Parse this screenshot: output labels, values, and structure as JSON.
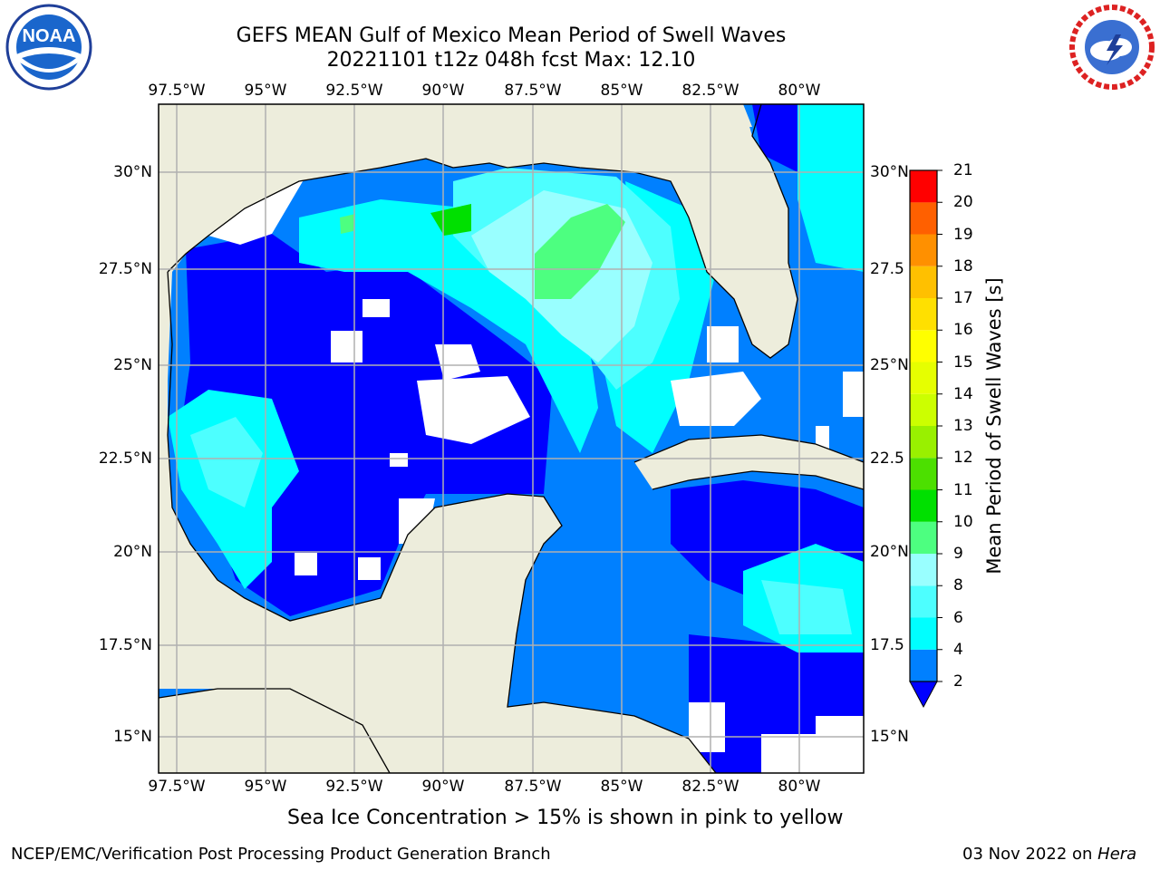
{
  "header": {
    "title_line1": "GEFS MEAN Gulf of Mexico Mean Period of Swell Waves",
    "title_line2": "20221101 t12z 048h fcst   Max: 12.10"
  },
  "logos": {
    "left": "noaa-logo",
    "right": "national-weather-service-logo",
    "left_text": "NOAA",
    "right_text": "NATIONAL WEATHER SERVICE"
  },
  "map": {
    "lon_labels": [
      "97.5°W",
      "95°W",
      "92.5°W",
      "90°W",
      "87.5°W",
      "85°W",
      "82.5°W",
      "80°W"
    ],
    "lat_labels_left": [
      "30°N",
      "27.5°N",
      "25°N",
      "22.5°N",
      "20°N",
      "17.5°N",
      "15°N"
    ],
    "lat_labels_right": [
      "30°N",
      "27.5",
      "25°N",
      "22.5",
      "20°N",
      "17.5",
      "15°N"
    ],
    "land_color": "#ededdc",
    "grid_color": "#b0b0b0"
  },
  "colorbar": {
    "label": "Mean Period of Swell Waves [s]",
    "ticks": [
      "21",
      "20",
      "19",
      "18",
      "17",
      "16",
      "15",
      "14",
      "13",
      "12",
      "11",
      "10",
      "9",
      "8",
      "6",
      "4",
      "2"
    ],
    "colors": [
      "#0000ff",
      "#0080ff",
      "#00ffff",
      "#4dffff",
      "#99ffff",
      "#4dff80",
      "#00e000",
      "#4ce000",
      "#99f000",
      "#ccff00",
      "#e6ff00",
      "#ffff00",
      "#ffe000",
      "#ffc000",
      "#ff9000",
      "#ff6000",
      "#ff3000",
      "#ff0000"
    ]
  },
  "note": "Sea Ice Concentration > 15% is shown in pink to yellow",
  "footer": {
    "left": "NCEP/EMC/Verification Post Processing Product Generation Branch",
    "date": "03 Nov 2022 on ",
    "machine": "Hera"
  }
}
